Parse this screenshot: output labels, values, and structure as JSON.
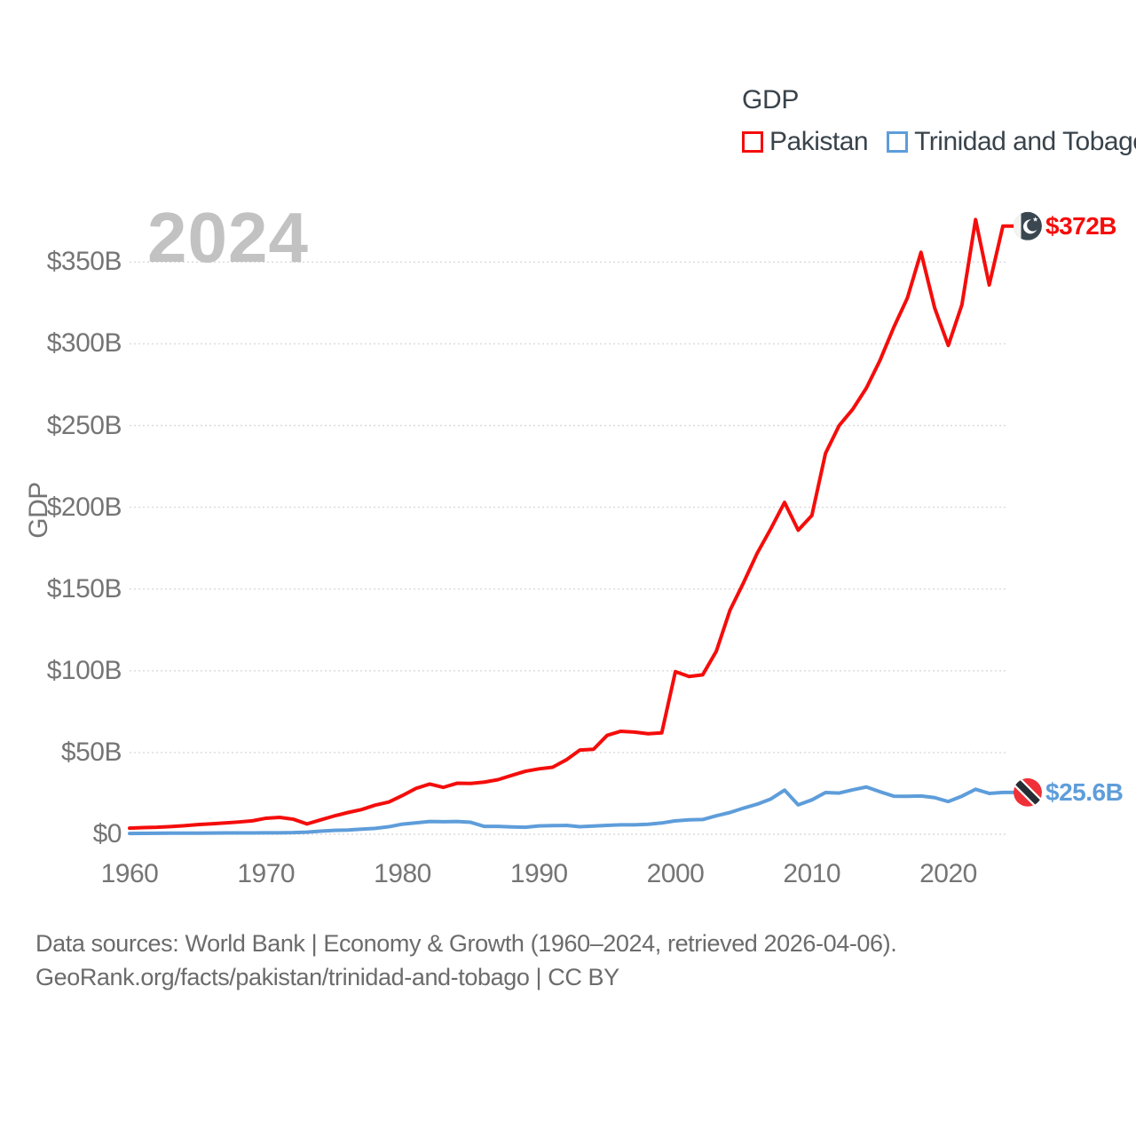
{
  "page": {
    "background": "#ffffff"
  },
  "watermark": "2024",
  "legend": {
    "title": "GDP",
    "items": [
      {
        "label": "Pakistan",
        "color": "#f40d0b"
      },
      {
        "label": "Trinidad and Tobago",
        "color": "#5e9dda"
      }
    ]
  },
  "y_axis": {
    "title": "GDP",
    "tick_values": [
      0,
      50,
      100,
      150,
      200,
      250,
      300,
      350
    ],
    "tick_labels": [
      "$0",
      "$50B",
      "$100B",
      "$150B",
      "$200B",
      "$250B",
      "$300B",
      "$350B"
    ]
  },
  "x_axis": {
    "tick_values": [
      1960,
      1970,
      1980,
      1990,
      2000,
      2010,
      2020
    ],
    "tick_labels": [
      "1960",
      "1970",
      "1980",
      "1990",
      "2000",
      "2010",
      "2020"
    ]
  },
  "end_labels": [
    {
      "series": "Pakistan",
      "text": "$372B",
      "flag": "pakistan-flag"
    },
    {
      "series": "Trinidad and Tobago",
      "text": "$25.6B",
      "flag": "trinidad-and-tobago-flag"
    }
  ],
  "footer": {
    "line1": "Data sources: World Bank | Economy & Growth (1960–2024, retrieved 2026-04-06).",
    "line2": "GeoRank.org/facts/pakistan/trinidad-and-tobago | CC BY"
  },
  "chart_data": {
    "type": "line",
    "title": "GDP",
    "ylabel": "GDP",
    "xlim": [
      1960,
      2024
    ],
    "ylim": [
      0,
      386
    ],
    "grid": "horizontal-dotted",
    "legend_position": "top-right",
    "watermark_year": "2024",
    "units": "billions of current USD",
    "x": [
      1960,
      1961,
      1962,
      1963,
      1964,
      1965,
      1966,
      1967,
      1968,
      1969,
      1970,
      1971,
      1972,
      1973,
      1974,
      1975,
      1976,
      1977,
      1978,
      1979,
      1980,
      1981,
      1982,
      1983,
      1984,
      1985,
      1986,
      1987,
      1988,
      1989,
      1990,
      1991,
      1992,
      1993,
      1994,
      1995,
      1996,
      1997,
      1998,
      1999,
      2000,
      2001,
      2002,
      2003,
      2004,
      2005,
      2006,
      2007,
      2008,
      2009,
      2010,
      2011,
      2012,
      2013,
      2014,
      2015,
      2016,
      2017,
      2018,
      2019,
      2020,
      2021,
      2022,
      2023,
      2024
    ],
    "series": [
      {
        "name": "Pakistan",
        "color": "#f40d0b",
        "end_value_label": "$372B",
        "values": [
          3.7,
          4.1,
          4.3,
          4.7,
          5.2,
          5.9,
          6.4,
          6.9,
          7.5,
          8.2,
          9.8,
          10.3,
          9.2,
          6.3,
          8.8,
          11.2,
          13.3,
          15.1,
          17.8,
          19.7,
          23.7,
          28.1,
          30.7,
          28.7,
          31.2,
          31.1,
          31.9,
          33.4,
          36.0,
          38.5,
          40.0,
          41.0,
          45.5,
          51.5,
          52.0,
          60.5,
          63.0,
          62.5,
          61.5,
          62.0,
          99.5,
          96.5,
          97.5,
          112,
          137,
          154,
          172,
          187,
          203,
          186,
          195,
          233,
          250,
          260,
          273,
          290,
          310,
          328,
          356,
          322,
          299,
          324,
          376,
          336,
          372
        ]
      },
      {
        "name": "Trinidad and Tobago",
        "color": "#5e9dda",
        "end_value_label": "$25.6B",
        "values": [
          0.5,
          0.55,
          0.6,
          0.65,
          0.7,
          0.7,
          0.75,
          0.8,
          0.8,
          0.8,
          0.85,
          0.9,
          1.0,
          1.3,
          1.9,
          2.4,
          2.6,
          3.1,
          3.6,
          4.6,
          6.2,
          7.0,
          7.8,
          7.7,
          7.8,
          7.3,
          4.8,
          4.8,
          4.5,
          4.3,
          5.1,
          5.3,
          5.4,
          4.6,
          5.0,
          5.4,
          5.8,
          5.8,
          6.1,
          6.9,
          8.2,
          8.8,
          9.0,
          11.3,
          13.3,
          16.0,
          18.4,
          21.6,
          27.0,
          18.0,
          21.0,
          25.5,
          25.2,
          27.2,
          28.9,
          26.0,
          23.3,
          23.2,
          23.4,
          22.4,
          20.0,
          23.3,
          27.5,
          25.0,
          25.6
        ]
      }
    ]
  }
}
